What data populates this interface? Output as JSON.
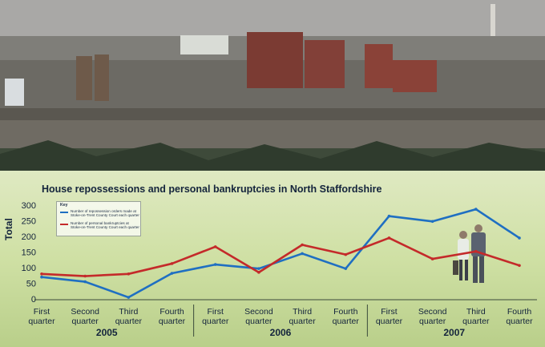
{
  "chart_data": {
    "type": "line",
    "title": "House repossessions and personal bankruptcies in North Staffordshire",
    "ylabel": "Total",
    "ylim": [
      0,
      300
    ],
    "yticks": [
      "0",
      "50",
      "100",
      "150",
      "200",
      "250",
      "300"
    ],
    "categories": [
      "First quarter",
      "Second quarter",
      "Third quarter",
      "Fourth quarter",
      "First quarter",
      "Second quarter",
      "Third quarter",
      "Fourth quarter",
      "First quarter",
      "Second quarter",
      "Third quarter",
      "Fourth quarter"
    ],
    "category_lines": [
      [
        "First",
        "quarter"
      ],
      [
        "Second",
        "quarter"
      ],
      [
        "Third",
        "quarter"
      ],
      [
        "Fourth",
        "quarter"
      ],
      [
        "First",
        "quarter"
      ],
      [
        "Second",
        "quarter"
      ],
      [
        "Third",
        "quarter"
      ],
      [
        "Fourth",
        "quarter"
      ],
      [
        "First",
        "quarter"
      ],
      [
        "Second",
        "quarter"
      ],
      [
        "Third",
        "quarter"
      ],
      [
        "Fourth",
        "quarter"
      ]
    ],
    "years": [
      "2005",
      "2006",
      "2007"
    ],
    "legend_title": "Key",
    "legend_position": "top-left",
    "series": [
      {
        "name": "Number of repossession orders made at Stoke-on-Trent County Court each quarter",
        "name_lines": [
          "Number of repossession orders made at",
          "Stoke-on-Trent County Court each quarter"
        ],
        "color": "#1f6fc2",
        "values": [
          70,
          55,
          5,
          82,
          110,
          97,
          145,
          97,
          265,
          248,
          287,
          195
        ]
      },
      {
        "name": "Number of personal bankruptcies at Stoke-on-Trent County Court each quarter",
        "name_lines": [
          "Number of personal bankruptcies at",
          "Stoke-on-Trent County Court each quarter"
        ],
        "color": "#c42a2a",
        "values": [
          80,
          73,
          80,
          113,
          167,
          85,
          173,
          142,
          195,
          128,
          152,
          107
        ]
      }
    ]
  }
}
